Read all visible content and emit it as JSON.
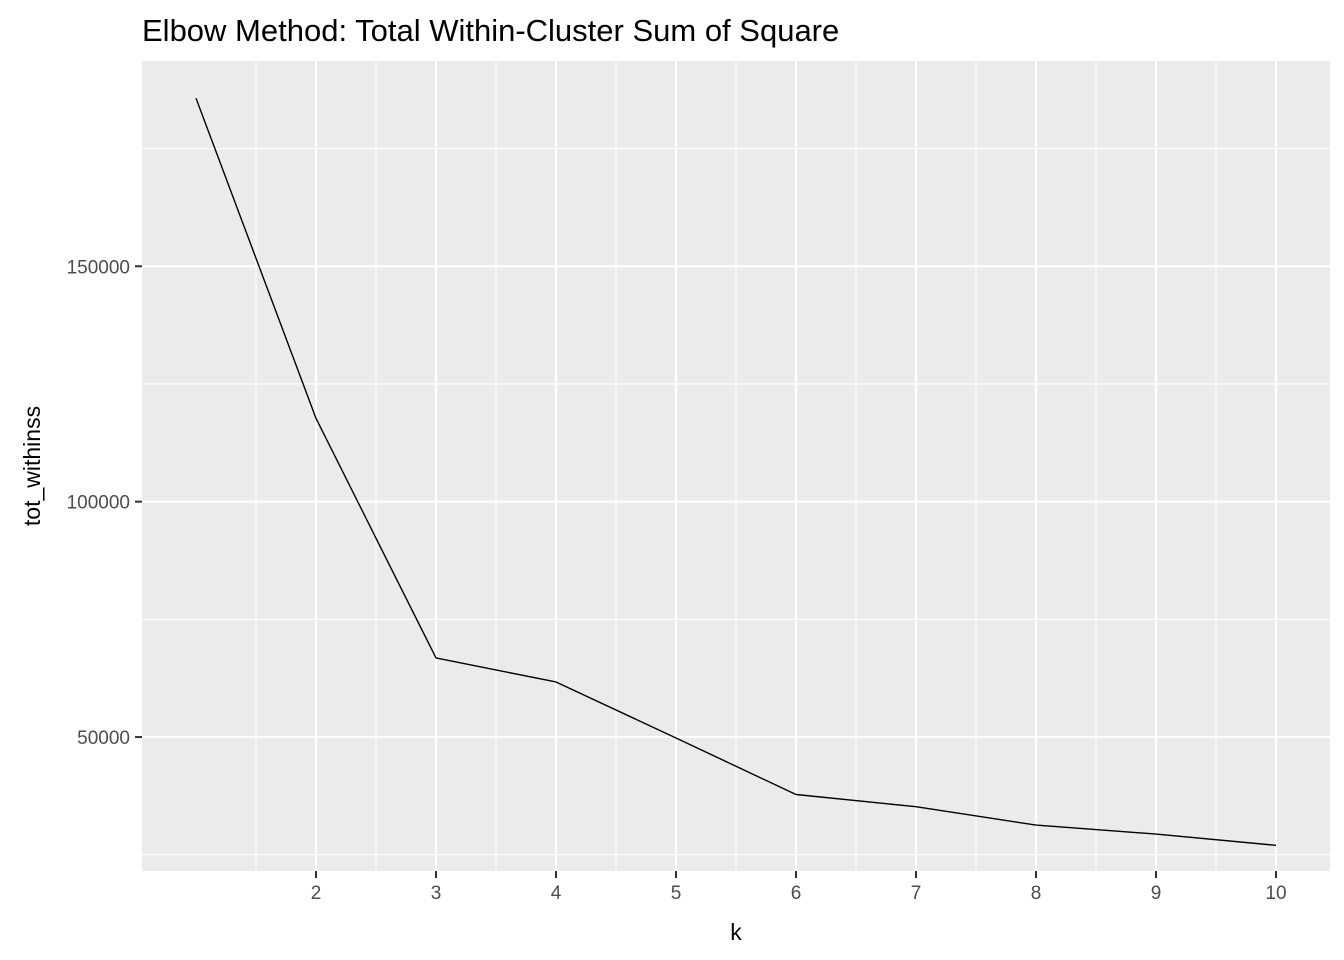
{
  "chart_data": {
    "type": "line",
    "title": "Elbow Method: Total Within-Cluster Sum of Square",
    "xlabel": "k",
    "ylabel": "tot_withinss",
    "x": [
      1,
      2,
      3,
      4,
      5,
      6,
      7,
      8,
      9,
      10
    ],
    "series": [
      {
        "values": [
          185700,
          117700,
          66800,
          61700,
          49800,
          37800,
          35200,
          31300,
          29400,
          27000
        ]
      }
    ],
    "x_ticks": [
      2,
      3,
      4,
      5,
      6,
      7,
      8,
      9,
      10
    ],
    "x_tick_labels": [
      "2",
      "3",
      "4",
      "5",
      "6",
      "7",
      "8",
      "9",
      "10"
    ],
    "y_ticks": [
      50000,
      100000,
      150000
    ],
    "y_tick_labels": [
      "50000",
      "100000",
      "150000"
    ],
    "xlim": [
      0.55,
      10.45
    ],
    "ylim": [
      21550,
      193600
    ],
    "line_color": "#000000",
    "panel_background": "#EBEBEB",
    "grid_color": "#FFFFFF",
    "grid": true,
    "legend": "none"
  }
}
